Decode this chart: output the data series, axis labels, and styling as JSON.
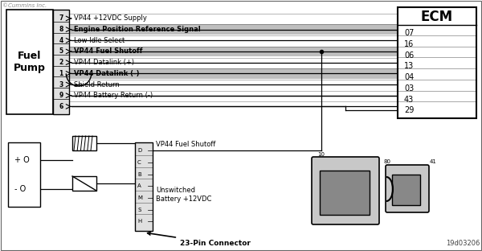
{
  "watermark": "©Cummins Inc.",
  "diagram_id": "19d03206",
  "bg_color": "#f0f0f0",
  "box_color": "#000000",
  "line_color": "#000000",
  "fuel_pump_label": "Fuel\nPump",
  "ecm_label": "ECM",
  "fp_pins": [
    "7",
    "8",
    "4",
    "5",
    "2",
    "1",
    "3",
    "9",
    "6"
  ],
  "signal_labels": [
    "VP44 +12VDC Supply",
    "Engine Position Reference Signal",
    "Low Idle Select",
    "VP44 Fuel Shutoff",
    "VP44 Datalink (+)",
    "VP44 Datalink (-)",
    "Shield Return",
    "VP44 Battery Return (-)",
    ""
  ],
  "ecm_pins": [
    "07",
    "16",
    "06",
    "13",
    "04",
    "03",
    "43",
    "29"
  ],
  "bottom_connector_pins": [
    "D",
    "C",
    "B",
    "A",
    "M",
    "S",
    "H"
  ],
  "bottom_connector_label": "VP44 Fuel Shutoff",
  "unswitched_label": "Unswitched\nBattery +12VDC",
  "pin23_label": "23-Pin Connector"
}
